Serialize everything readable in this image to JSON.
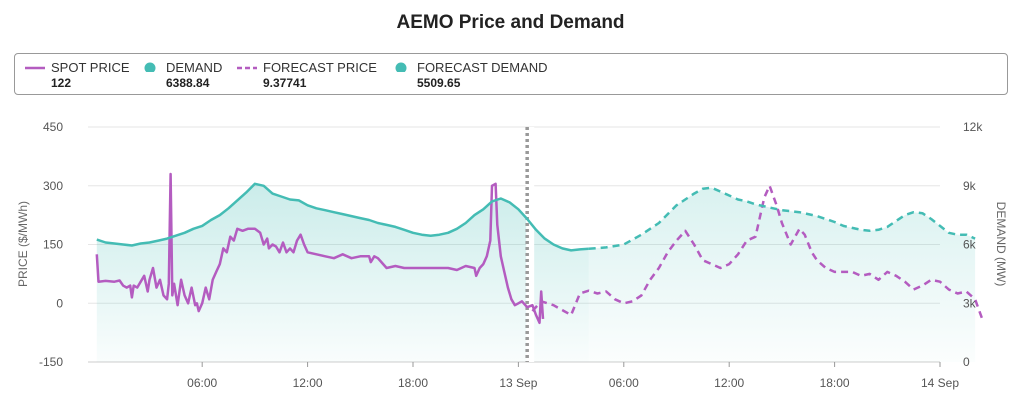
{
  "chart_data": {
    "type": "line",
    "title": "AEMO Price and Demand",
    "ylabel": "PRICE ($/MWh)",
    "y2label": "DEMAND (MW)",
    "ylim": [
      -150,
      450
    ],
    "y2lim": [
      0,
      12000
    ],
    "yticks": [
      "450",
      "300",
      "150",
      "0",
      "-150"
    ],
    "y2ticks": [
      "12k",
      "9k",
      "6k",
      "3k",
      "0"
    ],
    "xlim_hours": [
      -0.5,
      48
    ],
    "xticks": [
      {
        "h": 6,
        "label": "06:00"
      },
      {
        "h": 12,
        "label": "12:00"
      },
      {
        "h": 18,
        "label": "18:00"
      },
      {
        "h": 24,
        "label": "13 Sep"
      },
      {
        "h": 30,
        "label": "06:00"
      },
      {
        "h": 36,
        "label": "12:00"
      },
      {
        "h": 42,
        "label": "18:00"
      },
      {
        "h": 48,
        "label": "14 Sep"
      }
    ],
    "grid": true,
    "legend_position": "top",
    "divider_hour": 24.5,
    "series": [
      {
        "name": "SPOT PRICE",
        "legend_value": "122",
        "axis": "left",
        "style": "solid",
        "color": "#b45cc0",
        "points": [
          [
            0,
            125
          ],
          [
            0.1,
            55
          ],
          [
            0.5,
            57
          ],
          [
            1,
            55
          ],
          [
            1.3,
            58
          ],
          [
            1.5,
            45
          ],
          [
            1.7,
            40
          ],
          [
            1.9,
            45
          ],
          [
            2,
            15
          ],
          [
            2.1,
            45
          ],
          [
            2.3,
            40
          ],
          [
            2.5,
            55
          ],
          [
            2.7,
            70
          ],
          [
            2.9,
            30
          ],
          [
            3,
            60
          ],
          [
            3.2,
            90
          ],
          [
            3.4,
            40
          ],
          [
            3.6,
            60
          ],
          [
            3.8,
            20
          ],
          [
            4,
            10
          ],
          [
            4.1,
            50
          ],
          [
            4.2,
            330
          ],
          [
            4.3,
            20
          ],
          [
            4.4,
            50
          ],
          [
            4.6,
            -5
          ],
          [
            4.8,
            60
          ],
          [
            5,
            20
          ],
          [
            5.2,
            0
          ],
          [
            5.4,
            40
          ],
          [
            5.6,
            -5
          ],
          [
            5.7,
            0
          ],
          [
            5.8,
            -20
          ],
          [
            6,
            0
          ],
          [
            6.2,
            40
          ],
          [
            6.4,
            10
          ],
          [
            6.6,
            60
          ],
          [
            6.8,
            80
          ],
          [
            7,
            100
          ],
          [
            7.2,
            140
          ],
          [
            7.4,
            130
          ],
          [
            7.6,
            170
          ],
          [
            7.8,
            160
          ],
          [
            8,
            190
          ],
          [
            8.3,
            185
          ],
          [
            8.6,
            190
          ],
          [
            8.9,
            190
          ],
          [
            9,
            190
          ],
          [
            9.3,
            180
          ],
          [
            9.5,
            150
          ],
          [
            9.7,
            165
          ],
          [
            9.8,
            140
          ],
          [
            10,
            150
          ],
          [
            10.2,
            145
          ],
          [
            10.4,
            130
          ],
          [
            10.6,
            155
          ],
          [
            10.8,
            130
          ],
          [
            11,
            140
          ],
          [
            11.2,
            130
          ],
          [
            11.4,
            160
          ],
          [
            11.6,
            175
          ],
          [
            11.8,
            150
          ],
          [
            12,
            130
          ],
          [
            12.5,
            125
          ],
          [
            13,
            120
          ],
          [
            13.5,
            115
          ],
          [
            14,
            125
          ],
          [
            14.5,
            115
          ],
          [
            15,
            120
          ],
          [
            15.5,
            120
          ],
          [
            15.6,
            105
          ],
          [
            15.8,
            120
          ],
          [
            16,
            115
          ],
          [
            16.5,
            90
          ],
          [
            17,
            95
          ],
          [
            17.5,
            90
          ],
          [
            18,
            90
          ],
          [
            18.5,
            90
          ],
          [
            19,
            90
          ],
          [
            19.5,
            90
          ],
          [
            20,
            90
          ],
          [
            20.5,
            85
          ],
          [
            21,
            95
          ],
          [
            21.5,
            90
          ],
          [
            21.6,
            70
          ],
          [
            21.8,
            90
          ],
          [
            22,
            100
          ],
          [
            22.2,
            120
          ],
          [
            22.4,
            160
          ],
          [
            22.5,
            300
          ],
          [
            22.7,
            305
          ],
          [
            22.8,
            200
          ],
          [
            23,
            120
          ],
          [
            23.2,
            80
          ],
          [
            23.4,
            40
          ],
          [
            23.6,
            10
          ],
          [
            23.8,
            -5
          ],
          [
            24,
            0
          ],
          [
            24.2,
            5
          ],
          [
            24.5,
            -10
          ],
          [
            24.8,
            -5
          ],
          [
            25,
            -30
          ],
          [
            25.2,
            -50
          ],
          [
            25.3,
            30
          ],
          [
            25.4,
            -40
          ]
        ]
      },
      {
        "name": "DEMAND",
        "legend_value": "6388.84",
        "axis": "right",
        "style": "solid",
        "color": "#44bcb4",
        "points": [
          [
            0,
            6250
          ],
          [
            0.5,
            6100
          ],
          [
            1,
            6050
          ],
          [
            1.5,
            6000
          ],
          [
            2,
            5950
          ],
          [
            2.5,
            6050
          ],
          [
            3,
            6100
          ],
          [
            3.5,
            6200
          ],
          [
            4,
            6300
          ],
          [
            4.5,
            6450
          ],
          [
            5,
            6600
          ],
          [
            5.5,
            6800
          ],
          [
            6,
            6950
          ],
          [
            6.5,
            7250
          ],
          [
            7,
            7500
          ],
          [
            7.5,
            7850
          ],
          [
            8,
            8250
          ],
          [
            8.5,
            8650
          ],
          [
            9,
            9100
          ],
          [
            9.5,
            9000
          ],
          [
            10,
            8600
          ],
          [
            10.5,
            8450
          ],
          [
            11,
            8300
          ],
          [
            11.5,
            8250
          ],
          [
            12,
            8000
          ],
          [
            12.5,
            7850
          ],
          [
            13,
            7750
          ],
          [
            13.5,
            7650
          ],
          [
            14,
            7550
          ],
          [
            14.5,
            7450
          ],
          [
            15,
            7350
          ],
          [
            15.5,
            7250
          ],
          [
            16,
            7100
          ],
          [
            16.5,
            7000
          ],
          [
            17,
            6900
          ],
          [
            17.5,
            6750
          ],
          [
            18,
            6600
          ],
          [
            18.5,
            6500
          ],
          [
            19,
            6450
          ],
          [
            19.5,
            6500
          ],
          [
            20,
            6600
          ],
          [
            20.5,
            6800
          ],
          [
            21,
            7100
          ],
          [
            21.5,
            7500
          ],
          [
            22,
            7800
          ],
          [
            22.5,
            8200
          ],
          [
            23,
            8350
          ],
          [
            23.5,
            8150
          ],
          [
            24,
            7800
          ],
          [
            24.5,
            7300
          ],
          [
            25,
            6750
          ],
          [
            25.5,
            6300
          ],
          [
            26,
            6000
          ],
          [
            26.5,
            5800
          ],
          [
            27,
            5700
          ],
          [
            27.5,
            5750
          ],
          [
            28,
            5780
          ]
        ]
      },
      {
        "name": "FORECAST PRICE",
        "legend_value": "9.37741",
        "axis": "left",
        "style": "dashed",
        "color": "#b45cc0",
        "points": [
          [
            24.8,
            -20
          ],
          [
            25.3,
            5
          ],
          [
            26,
            -5
          ],
          [
            26.6,
            -20
          ],
          [
            27,
            -30
          ],
          [
            27.5,
            25
          ],
          [
            28,
            32
          ],
          [
            28.5,
            25
          ],
          [
            29,
            30
          ],
          [
            29.5,
            10
          ],
          [
            30,
            0
          ],
          [
            30.5,
            5
          ],
          [
            31,
            20
          ],
          [
            31.5,
            60
          ],
          [
            32,
            90
          ],
          [
            32.5,
            130
          ],
          [
            33,
            160
          ],
          [
            33.5,
            185
          ],
          [
            34,
            150
          ],
          [
            34.5,
            110
          ],
          [
            35,
            100
          ],
          [
            35.5,
            90
          ],
          [
            36,
            100
          ],
          [
            36.5,
            125
          ],
          [
            37,
            160
          ],
          [
            37.5,
            170
          ],
          [
            38,
            270
          ],
          [
            38.3,
            300
          ],
          [
            38.7,
            250
          ],
          [
            39,
            205
          ],
          [
            39.5,
            150
          ],
          [
            40,
            190
          ],
          [
            40.3,
            175
          ],
          [
            40.7,
            130
          ],
          [
            41,
            110
          ],
          [
            41.5,
            90
          ],
          [
            42,
            80
          ],
          [
            42.5,
            80
          ],
          [
            43,
            80
          ],
          [
            43.5,
            70
          ],
          [
            44,
            75
          ],
          [
            44.5,
            60
          ],
          [
            45,
            80
          ],
          [
            45.5,
            70
          ],
          [
            46,
            55
          ],
          [
            46.5,
            35
          ],
          [
            47,
            45
          ],
          [
            47.5,
            60
          ],
          [
            48,
            55
          ],
          [
            48.5,
            35
          ],
          [
            49,
            25
          ],
          [
            49.5,
            30
          ],
          [
            50,
            10
          ],
          [
            50.4,
            -40
          ]
        ]
      },
      {
        "name": "FORECAST DEMAND",
        "legend_value": "5509.65",
        "axis": "right",
        "style": "dashed",
        "color": "#44bcb4",
        "points": [
          [
            28,
            5780
          ],
          [
            29,
            5850
          ],
          [
            30,
            6000
          ],
          [
            31,
            6500
          ],
          [
            32,
            7100
          ],
          [
            33,
            8000
          ],
          [
            34,
            8600
          ],
          [
            34.5,
            8850
          ],
          [
            35,
            8900
          ],
          [
            35.5,
            8700
          ],
          [
            36,
            8500
          ],
          [
            36.5,
            8300
          ],
          [
            37,
            8200
          ],
          [
            37.5,
            8050
          ],
          [
            38,
            7950
          ],
          [
            38.5,
            7850
          ],
          [
            39,
            7750
          ],
          [
            39.5,
            7700
          ],
          [
            40,
            7650
          ],
          [
            40.5,
            7550
          ],
          [
            41,
            7450
          ],
          [
            41.5,
            7300
          ],
          [
            42,
            7150
          ],
          [
            42.5,
            6950
          ],
          [
            43,
            6850
          ],
          [
            43.5,
            6750
          ],
          [
            44,
            6700
          ],
          [
            44.5,
            6750
          ],
          [
            45,
            6900
          ],
          [
            45.5,
            7200
          ],
          [
            46,
            7500
          ],
          [
            46.5,
            7650
          ],
          [
            47,
            7600
          ],
          [
            47.5,
            7300
          ],
          [
            48,
            6950
          ],
          [
            48.5,
            6600
          ],
          [
            49,
            6500
          ],
          [
            49.5,
            6500
          ],
          [
            50,
            6300
          ]
        ]
      }
    ]
  }
}
